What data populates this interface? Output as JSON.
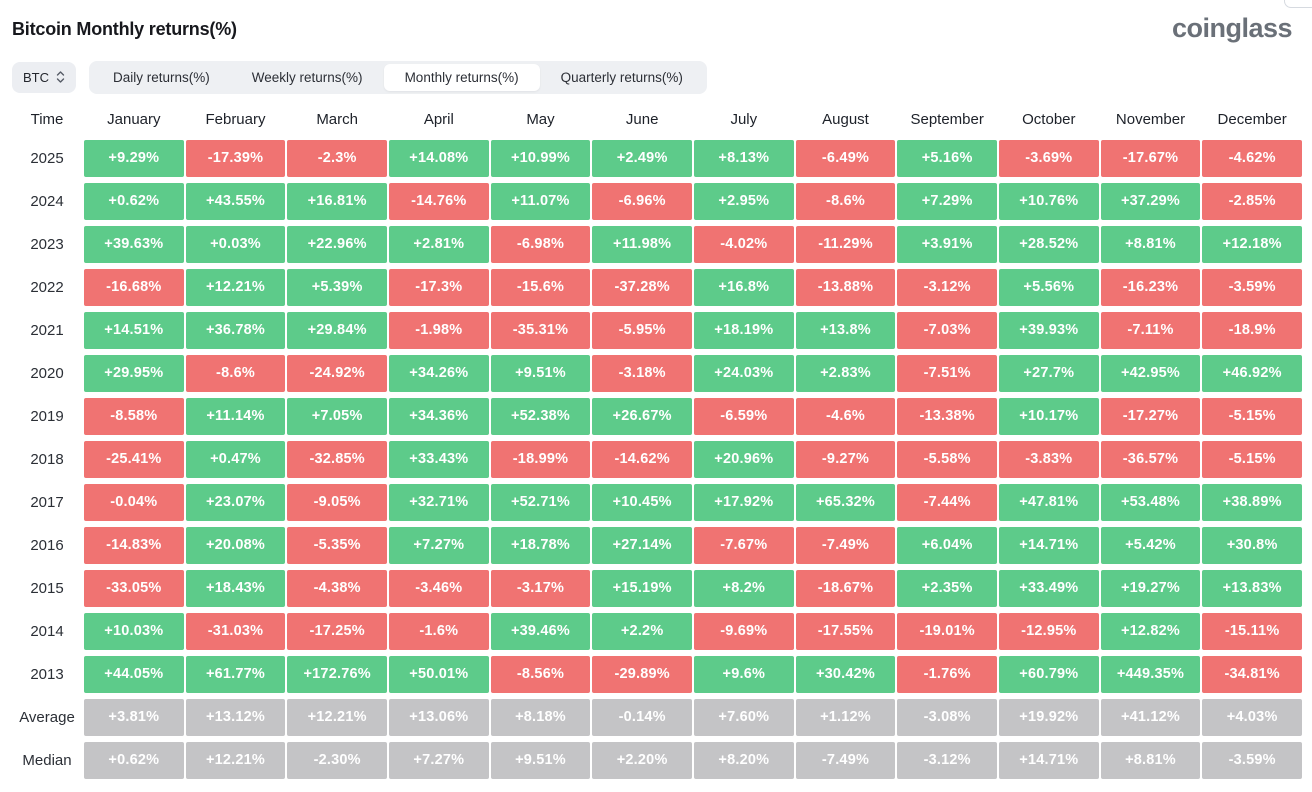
{
  "header": {
    "title": "Bitcoin Monthly returns(%)",
    "logo": "coinglass"
  },
  "controls": {
    "symbol": "BTC",
    "symbol_selector_icon": "chevron-up-down-icon",
    "tabs": [
      {
        "label": "Daily returns(%)",
        "active": false
      },
      {
        "label": "Weekly returns(%)",
        "active": false
      },
      {
        "label": "Monthly returns(%)",
        "active": true
      },
      {
        "label": "Quarterly returns(%)",
        "active": false
      }
    ]
  },
  "colors": {
    "positive": "#5dcb8a",
    "negative": "#f07372",
    "summary": "#c4c4c6"
  },
  "table": {
    "columns": [
      "Time",
      "January",
      "February",
      "March",
      "April",
      "May",
      "June",
      "July",
      "August",
      "September",
      "October",
      "November",
      "December"
    ],
    "rows": [
      {
        "label": "2025",
        "type": "year",
        "values": [
          "+9.29%",
          "-17.39%",
          "-2.3%",
          "+14.08%",
          "+10.99%",
          "+2.49%",
          "+8.13%",
          "-6.49%",
          "+5.16%",
          "-3.69%",
          "-17.67%",
          "-4.62%"
        ]
      },
      {
        "label": "2024",
        "type": "year",
        "values": [
          "+0.62%",
          "+43.55%",
          "+16.81%",
          "-14.76%",
          "+11.07%",
          "-6.96%",
          "+2.95%",
          "-8.6%",
          "+7.29%",
          "+10.76%",
          "+37.29%",
          "-2.85%"
        ]
      },
      {
        "label": "2023",
        "type": "year",
        "values": [
          "+39.63%",
          "+0.03%",
          "+22.96%",
          "+2.81%",
          "-6.98%",
          "+11.98%",
          "-4.02%",
          "-11.29%",
          "+3.91%",
          "+28.52%",
          "+8.81%",
          "+12.18%"
        ]
      },
      {
        "label": "2022",
        "type": "year",
        "values": [
          "-16.68%",
          "+12.21%",
          "+5.39%",
          "-17.3%",
          "-15.6%",
          "-37.28%",
          "+16.8%",
          "-13.88%",
          "-3.12%",
          "+5.56%",
          "-16.23%",
          "-3.59%"
        ]
      },
      {
        "label": "2021",
        "type": "year",
        "values": [
          "+14.51%",
          "+36.78%",
          "+29.84%",
          "-1.98%",
          "-35.31%",
          "-5.95%",
          "+18.19%",
          "+13.8%",
          "-7.03%",
          "+39.93%",
          "-7.11%",
          "-18.9%"
        ]
      },
      {
        "label": "2020",
        "type": "year",
        "values": [
          "+29.95%",
          "-8.6%",
          "-24.92%",
          "+34.26%",
          "+9.51%",
          "-3.18%",
          "+24.03%",
          "+2.83%",
          "-7.51%",
          "+27.7%",
          "+42.95%",
          "+46.92%"
        ]
      },
      {
        "label": "2019",
        "type": "year",
        "values": [
          "-8.58%",
          "+11.14%",
          "+7.05%",
          "+34.36%",
          "+52.38%",
          "+26.67%",
          "-6.59%",
          "-4.6%",
          "-13.38%",
          "+10.17%",
          "-17.27%",
          "-5.15%"
        ]
      },
      {
        "label": "2018",
        "type": "year",
        "values": [
          "-25.41%",
          "+0.47%",
          "-32.85%",
          "+33.43%",
          "-18.99%",
          "-14.62%",
          "+20.96%",
          "-9.27%",
          "-5.58%",
          "-3.83%",
          "-36.57%",
          "-5.15%"
        ]
      },
      {
        "label": "2017",
        "type": "year",
        "values": [
          "-0.04%",
          "+23.07%",
          "-9.05%",
          "+32.71%",
          "+52.71%",
          "+10.45%",
          "+17.92%",
          "+65.32%",
          "-7.44%",
          "+47.81%",
          "+53.48%",
          "+38.89%"
        ]
      },
      {
        "label": "2016",
        "type": "year",
        "values": [
          "-14.83%",
          "+20.08%",
          "-5.35%",
          "+7.27%",
          "+18.78%",
          "+27.14%",
          "-7.67%",
          "-7.49%",
          "+6.04%",
          "+14.71%",
          "+5.42%",
          "+30.8%"
        ]
      },
      {
        "label": "2015",
        "type": "year",
        "values": [
          "-33.05%",
          "+18.43%",
          "-4.38%",
          "-3.46%",
          "-3.17%",
          "+15.19%",
          "+8.2%",
          "-18.67%",
          "+2.35%",
          "+33.49%",
          "+19.27%",
          "+13.83%"
        ]
      },
      {
        "label": "2014",
        "type": "year",
        "values": [
          "+10.03%",
          "-31.03%",
          "-17.25%",
          "-1.6%",
          "+39.46%",
          "+2.2%",
          "-9.69%",
          "-17.55%",
          "-19.01%",
          "-12.95%",
          "+12.82%",
          "-15.11%"
        ]
      },
      {
        "label": "2013",
        "type": "year",
        "values": [
          "+44.05%",
          "+61.77%",
          "+172.76%",
          "+50.01%",
          "-8.56%",
          "-29.89%",
          "+9.6%",
          "+30.42%",
          "-1.76%",
          "+60.79%",
          "+449.35%",
          "-34.81%"
        ]
      },
      {
        "label": "Average",
        "type": "summary",
        "values": [
          "+3.81%",
          "+13.12%",
          "+12.21%",
          "+13.06%",
          "+8.18%",
          "-0.14%",
          "+7.60%",
          "+1.12%",
          "-3.08%",
          "+19.92%",
          "+41.12%",
          "+4.03%"
        ]
      },
      {
        "label": "Median",
        "type": "summary",
        "values": [
          "+0.62%",
          "+12.21%",
          "-2.30%",
          "+7.27%",
          "+9.51%",
          "+2.20%",
          "+8.20%",
          "-7.49%",
          "-3.12%",
          "+14.71%",
          "+8.81%",
          "-3.59%"
        ]
      }
    ]
  }
}
